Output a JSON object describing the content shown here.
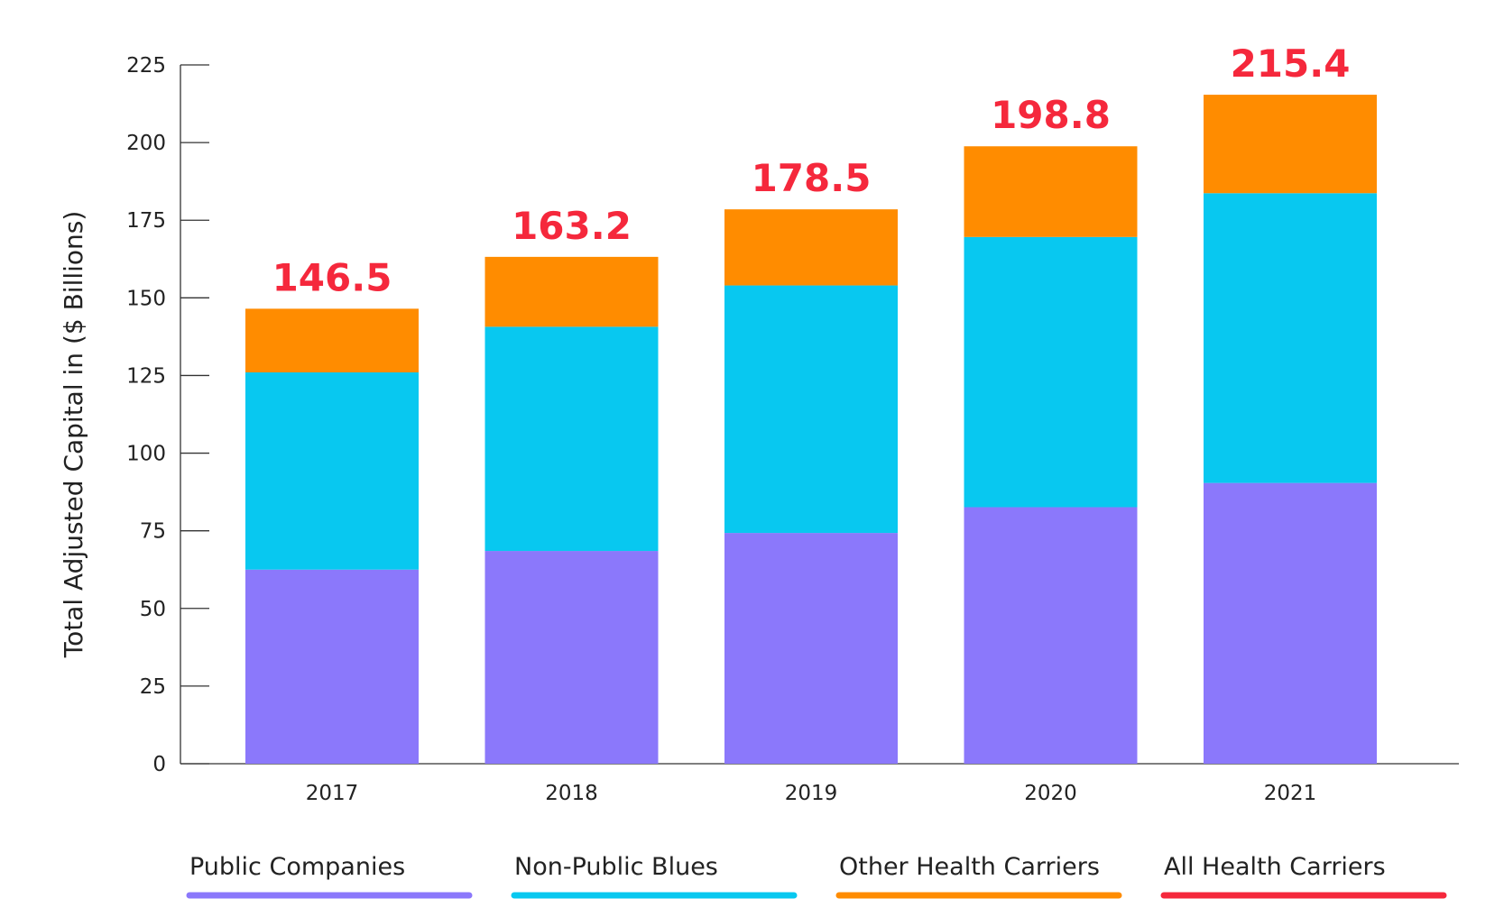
{
  "chart_data": {
    "type": "bar",
    "stacked": true,
    "categories": [
      "2017",
      "2018",
      "2019",
      "2020",
      "2021"
    ],
    "series": [
      {
        "name": "Public Companies",
        "color": "#8b78fb",
        "values": [
          62.5,
          68.5,
          74.3,
          82.6,
          90.4
        ]
      },
      {
        "name": "Non-Public Blues",
        "color": "#08c8f0",
        "values": [
          63.5,
          72.2,
          79.7,
          87.0,
          93.3
        ]
      },
      {
        "name": "Other Health Carriers",
        "color": "#ff8c00",
        "values": [
          20.5,
          22.5,
          24.5,
          29.2,
          31.7
        ]
      }
    ],
    "totals": {
      "name": "All Health Carriers",
      "color": "#f5283c",
      "values": [
        "146.5",
        "163.2",
        "178.5",
        "198.8",
        "215.4"
      ]
    },
    "ylabel": "Total Adjusted Capital in ($ Billions)",
    "xlabel": "",
    "ylim": [
      0,
      225
    ],
    "yticks": [
      "0",
      "25",
      "50",
      "75",
      "100",
      "125",
      "150",
      "175",
      "200",
      "225"
    ],
    "legend_position": "bottom",
    "grid": false
  }
}
